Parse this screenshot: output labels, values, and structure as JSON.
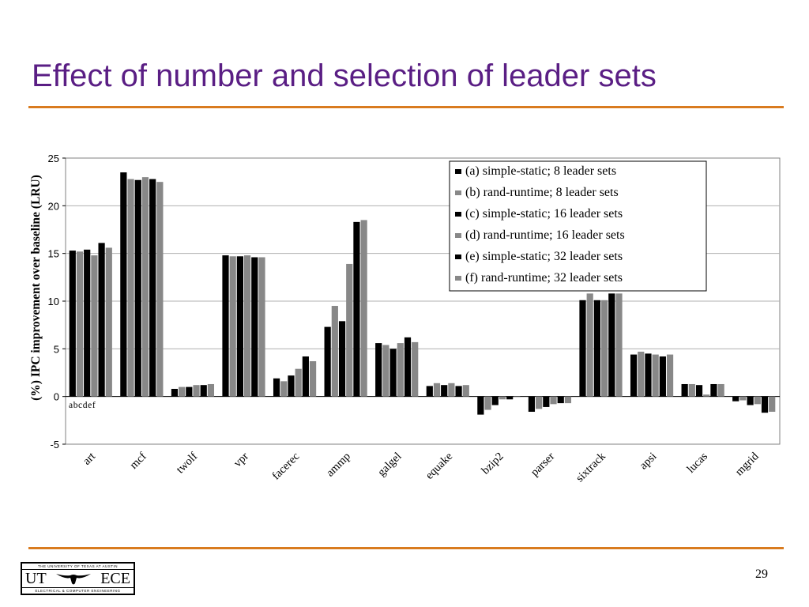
{
  "slide": {
    "title": "Effect of number and selection of leader sets",
    "page_number": "29",
    "logo": {
      "top_text": "THE UNIVERSITY OF TEXAS AT AUSTIN",
      "left_text": "UT",
      "right_text": "ECE",
      "bottom_text": "ELECTRICAL & COMPUTER ENGINEERING"
    }
  },
  "colors": {
    "title": "#5a1e84",
    "rule": "#d97b1f",
    "series_black": "#000000",
    "series_gray": "#888888",
    "plot_background": "#ffffff",
    "grid": "#b0b0b0"
  },
  "chart_data": {
    "type": "bar",
    "ylabel": "(%) IPC improvement over baseline (LRU)",
    "ylim": [
      -5,
      25
    ],
    "yticks": [
      -5,
      0,
      5,
      10,
      15,
      20,
      25
    ],
    "grid": true,
    "legend_position": "top-right",
    "bar_letters": "abcdef",
    "categories": [
      "art",
      "mcf",
      "twolf",
      "vpr",
      "facerec",
      "ammp",
      "galgel",
      "equake",
      "bzip2",
      "parser",
      "sixtrack",
      "apsi",
      "lucas",
      "mgrid"
    ],
    "series": [
      {
        "name": "(a) simple-static; 8 leader sets",
        "values": [
          15.3,
          23.5,
          0.8,
          14.8,
          1.9,
          7.3,
          5.6,
          1.1,
          -1.9,
          -1.6,
          10.1,
          4.4,
          1.3,
          -0.5
        ]
      },
      {
        "name": "(b) rand-runtime; 8 leader sets",
        "values": [
          15.2,
          22.8,
          1.0,
          14.7,
          1.6,
          9.5,
          5.4,
          1.4,
          -1.4,
          -1.3,
          10.8,
          4.7,
          1.3,
          -0.4
        ]
      },
      {
        "name": "(c) simple-static; 16 leader sets",
        "values": [
          15.4,
          22.7,
          1.0,
          14.7,
          2.2,
          7.9,
          5.0,
          1.2,
          -0.9,
          -1.1,
          10.1,
          4.5,
          1.2,
          -0.9
        ]
      },
      {
        "name": "(d) rand-runtime; 16 leader sets",
        "values": [
          14.8,
          23.0,
          1.2,
          14.8,
          2.9,
          13.9,
          5.6,
          1.4,
          -0.3,
          -0.8,
          10.1,
          4.4,
          0.2,
          -0.8
        ]
      },
      {
        "name": "(e) simple-static; 32 leader sets",
        "values": [
          16.1,
          22.8,
          1.2,
          14.6,
          4.2,
          18.3,
          6.2,
          1.1,
          -0.3,
          -0.7,
          10.8,
          4.2,
          1.3,
          -1.7
        ]
      },
      {
        "name": "(f) rand-runtime; 32 leader sets",
        "values": [
          15.6,
          22.5,
          1.3,
          14.6,
          3.7,
          18.5,
          5.7,
          1.2,
          0.0,
          -0.7,
          10.8,
          4.4,
          1.3,
          -1.6
        ]
      }
    ]
  }
}
